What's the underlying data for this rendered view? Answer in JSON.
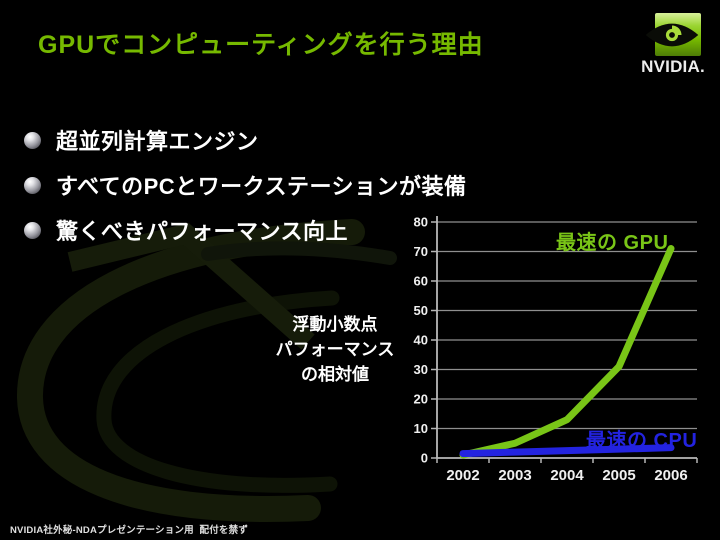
{
  "slide": {
    "title": "GPUでコンピューティングを行う理由",
    "footer": "NVIDIA社外秘-NDAプレゼンテーション用  配付を禁ず"
  },
  "logo": {
    "brand": "NVIDIA."
  },
  "bullets": [
    {
      "label": "超並列計算エンジン"
    },
    {
      "label": "すべてのPCとワークステーションが装備"
    },
    {
      "label": "驚くべきパフォーマンス向上"
    }
  ],
  "chart_data": {
    "type": "line",
    "categories": [
      "2002",
      "2003",
      "2004",
      "2005",
      "2006"
    ],
    "series": [
      {
        "name": "最速の GPU",
        "color": "#79c517",
        "values": [
          1,
          5,
          13,
          31,
          71
        ]
      },
      {
        "name": "最速の CPU",
        "color": "#2323e0",
        "values": [
          1.5,
          2,
          2.5,
          3,
          3.5
        ]
      }
    ],
    "ylabel_lines": [
      "浮動小数点",
      "パフォーマンス",
      "の相対値"
    ],
    "ylim": [
      0,
      80
    ],
    "yticks": [
      0,
      10,
      20,
      30,
      40,
      50,
      60,
      70,
      80
    ],
    "grid": true,
    "legend_position": "inline"
  },
  "colors": {
    "title_green": "#76b900",
    "gpu_green": "#79c517",
    "cpu_blue": "#2323e0",
    "background": "#000000"
  }
}
